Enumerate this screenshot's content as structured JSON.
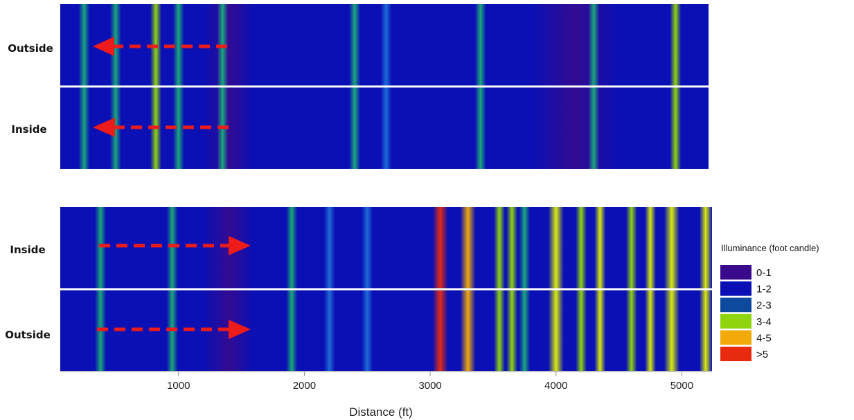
{
  "chart_data": {
    "type": "heatmap",
    "xlabel": "Distance (ft)",
    "xlim": [
      60,
      5240
    ],
    "xticks": [
      1000,
      2000,
      3000,
      4000,
      5000
    ],
    "panels": [
      {
        "rows": [
          {
            "label": "Outside",
            "direction": "left"
          },
          {
            "label": "Inside",
            "direction": "left"
          }
        ],
        "stripes": [
          {
            "x": 250,
            "level": 2.4
          },
          {
            "x": 500,
            "level": 2.3
          },
          {
            "x": 820,
            "level": 3.1
          },
          {
            "x": 1000,
            "level": 2.2
          },
          {
            "x": 1350,
            "level": 2.3
          },
          {
            "x": 2400,
            "level": 2.4
          },
          {
            "x": 2650,
            "level": 2.1
          },
          {
            "x": 3400,
            "level": 2.2
          },
          {
            "x": 4300,
            "level": 2.2
          },
          {
            "x": 4950,
            "level": 3.2
          }
        ],
        "dark_regions": [
          {
            "from": 1200,
            "to": 1600
          },
          {
            "from": 3800,
            "to": 4500
          }
        ]
      },
      {
        "rows": [
          {
            "label": "Inside",
            "direction": "right"
          },
          {
            "label": "Outside",
            "direction": "right"
          }
        ],
        "stripes": [
          {
            "x": 380,
            "level": 2.6
          },
          {
            "x": 950,
            "level": 2.2
          },
          {
            "x": 1900,
            "level": 2.3
          },
          {
            "x": 2200,
            "level": 2.1
          },
          {
            "x": 2500,
            "level": 2.0
          },
          {
            "x": 3080,
            "level": 5.2
          },
          {
            "x": 3300,
            "level": 4.6
          },
          {
            "x": 3550,
            "level": 3.2
          },
          {
            "x": 3650,
            "level": 2.8
          },
          {
            "x": 3750,
            "level": 2.6
          },
          {
            "x": 4000,
            "level": 4.2
          },
          {
            "x": 4200,
            "level": 3.4
          },
          {
            "x": 4350,
            "level": 3.6
          },
          {
            "x": 4600,
            "level": 3.2
          },
          {
            "x": 4750,
            "level": 3.6
          },
          {
            "x": 4920,
            "level": 4.0
          },
          {
            "x": 5200,
            "level": 4.2
          }
        ],
        "dark_regions": [
          {
            "from": 1200,
            "to": 1600
          }
        ]
      }
    ],
    "legend": {
      "title": "Illuminance (foot candle)",
      "placement": "right",
      "items": [
        {
          "label": "0-1",
          "color": "#3a0a8c"
        },
        {
          "label": "1-2",
          "color": "#0a10b4"
        },
        {
          "label": "2-3",
          "color": "#0d4a9e"
        },
        {
          "label": "3-4",
          "color": "#8fd40c"
        },
        {
          "label": "4-5",
          "color": "#f2a90a"
        },
        {
          "label": ">5",
          "color": "#e82a10"
        }
      ]
    },
    "arrow_color": "#ee1b1b"
  }
}
